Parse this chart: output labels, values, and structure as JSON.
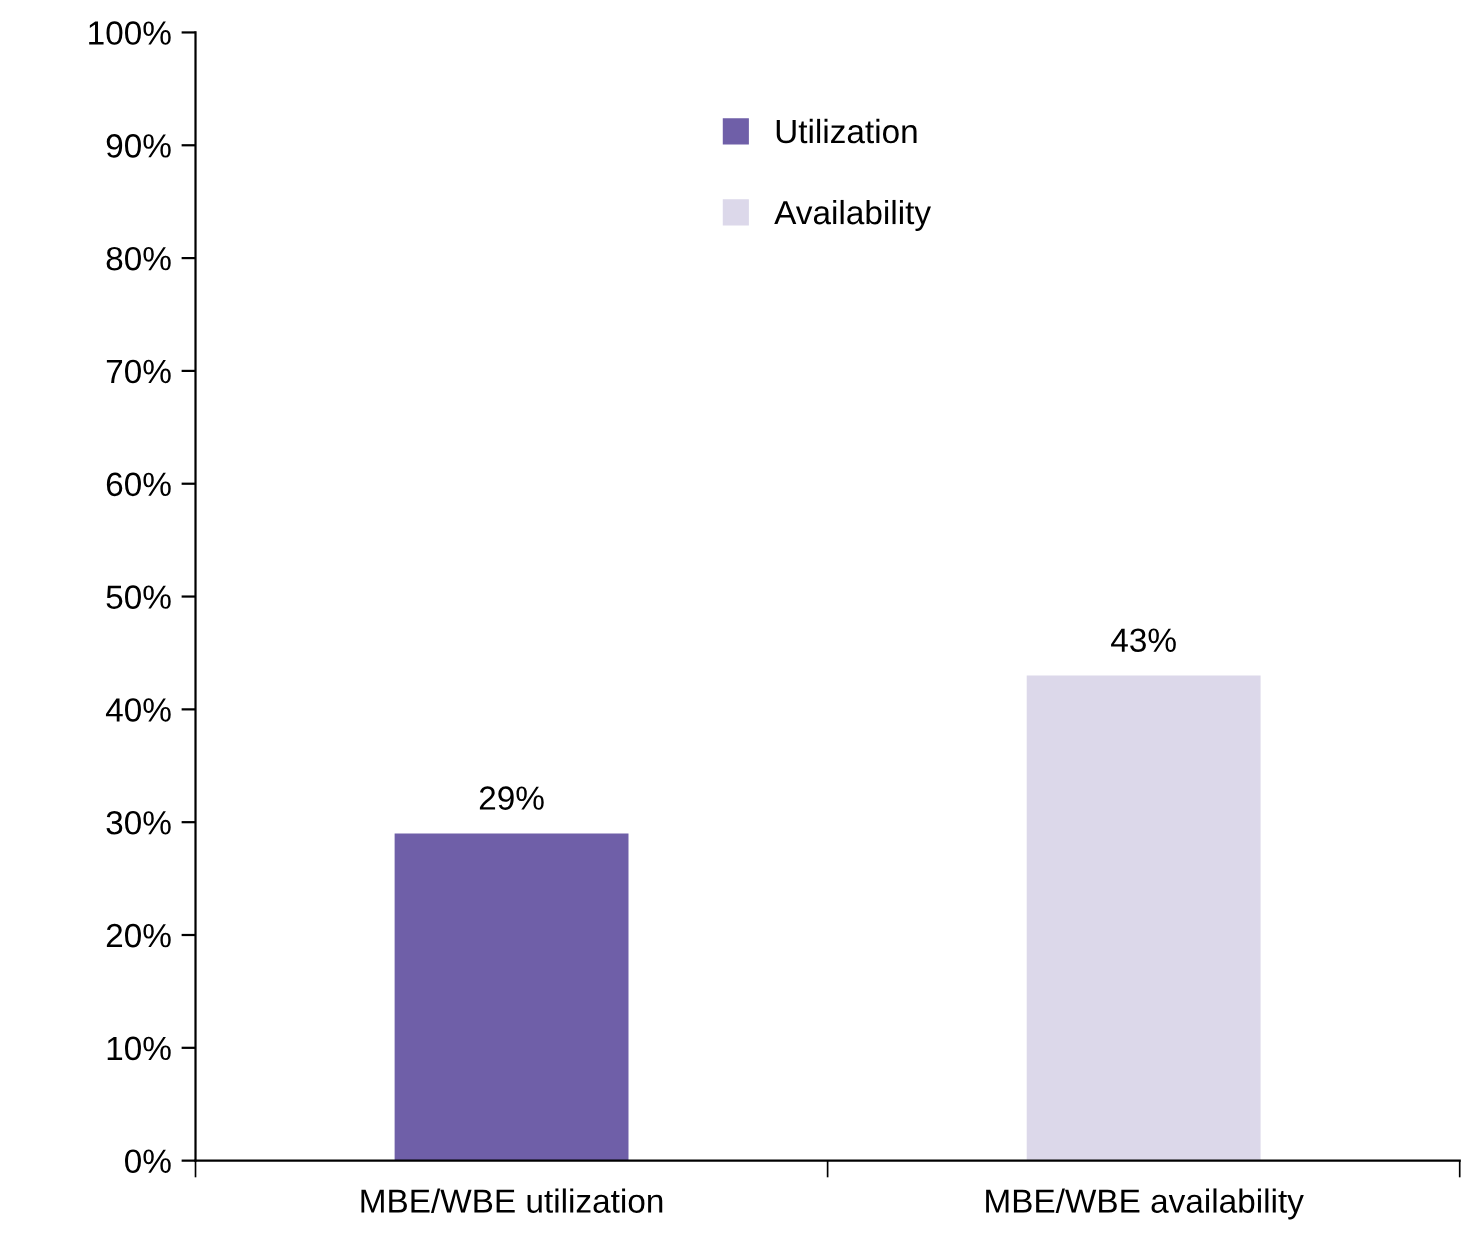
{
  "chart_data": {
    "type": "bar",
    "categories": [
      "MBE/WBE utilization",
      "MBE/WBE availability"
    ],
    "series": [
      {
        "name": "Utilization",
        "color": "#6f5fa8",
        "values": [
          29,
          null
        ],
        "value_labels": [
          "29%",
          null
        ]
      },
      {
        "name": "Availability",
        "color": "#dcd8ea",
        "values": [
          null,
          43
        ],
        "value_labels": [
          null,
          "43%"
        ]
      }
    ],
    "ylim": [
      0,
      100
    ],
    "yticks": [
      {
        "value": 0,
        "label": "0%"
      },
      {
        "value": 10,
        "label": "10%"
      },
      {
        "value": 20,
        "label": "20%"
      },
      {
        "value": 30,
        "label": "30%"
      },
      {
        "value": 40,
        "label": "40%"
      },
      {
        "value": 50,
        "label": "50%"
      },
      {
        "value": 60,
        "label": "60%"
      },
      {
        "value": 70,
        "label": "70%"
      },
      {
        "value": 80,
        "label": "80%"
      },
      {
        "value": 90,
        "label": "90%"
      },
      {
        "value": 100,
        "label": "100%"
      }
    ],
    "grid": false,
    "legend": "top"
  }
}
